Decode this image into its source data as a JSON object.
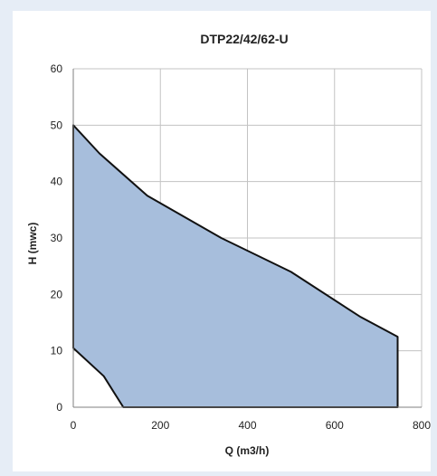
{
  "chart_data": {
    "type": "area",
    "title": "DTP22/42/62-U",
    "xlabel": "Q (m3/h)",
    "ylabel": "H (mwc)",
    "xlim": [
      0,
      800
    ],
    "ylim": [
      0,
      60
    ],
    "xticks": [
      0,
      200,
      400,
      600,
      800
    ],
    "yticks": [
      0,
      10,
      20,
      30,
      40,
      50,
      60
    ],
    "grid": true,
    "legend": "none",
    "series": [
      {
        "x": [
          0,
          60,
          170,
          340,
          500,
          660,
          745,
          745,
          115,
          70,
          0,
          0
        ],
        "y": [
          50,
          45,
          37.5,
          30,
          24,
          16,
          12.5,
          0,
          0,
          5.5,
          10.5,
          50
        ]
      }
    ],
    "colors": {
      "fill": "#a7bedc",
      "outline": "#111111",
      "grid": "#c3c3c3",
      "axis": "#7f7f7f"
    }
  }
}
